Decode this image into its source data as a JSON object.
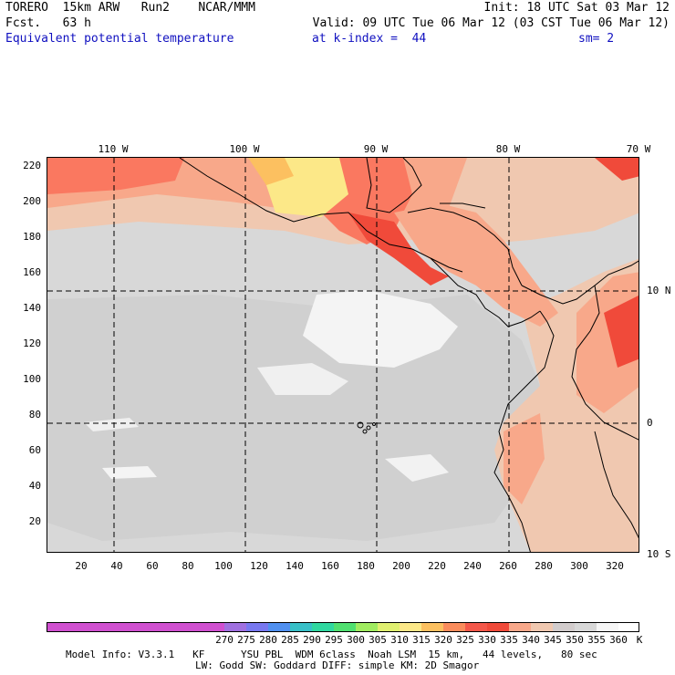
{
  "header": {
    "line1_left": "TORERO  15km ARW   Run2    NCAR/MMM",
    "line1_right": "Init: 18 UTC Sat 03 Mar 12",
    "line2_left": "Fcst.   63 h",
    "line2_right": "Valid: 09 UTC Tue 06 Mar 12 (03 CST Tue 06 Mar 12)",
    "field_name": "Equivalent potential temperature",
    "level_info": "at k-index =  44",
    "smoothing": "sm= 2"
  },
  "map": {
    "top_lon_labels": [
      "110 W",
      "100 W",
      "90 W",
      "80 W",
      "70 W"
    ],
    "right_lat_labels": [
      "10 N",
      "0",
      "10 S"
    ],
    "left_grid_labels": [
      "220",
      "200",
      "180",
      "160",
      "140",
      "120",
      "100",
      "80",
      "60",
      "40",
      "20"
    ],
    "bottom_grid_labels": [
      "20",
      "40",
      "60",
      "80",
      "100",
      "120",
      "140",
      "160",
      "180",
      "200",
      "220",
      "240",
      "260",
      "280",
      "300",
      "320"
    ],
    "field_colors": {
      "land_high": "#f04a3a",
      "very_warm": "#fa7860",
      "warm": "#f8a88a",
      "mild": "#f0c8b0",
      "cool": "#d2cccc",
      "colder": "#d8d8d8",
      "coldest": "#f6f6f6",
      "yellow": "#fce888",
      "orange": "#fcc060"
    },
    "coast_color": "#000000",
    "grid_line_style": "dashed"
  },
  "colorbar": {
    "colors": [
      "#d050d0",
      "#a070e0",
      "#7878f0",
      "#5090f0",
      "#38c0c8",
      "#30d8a0",
      "#50e070",
      "#a0ec60",
      "#e0f070",
      "#fce888",
      "#fcc060",
      "#fa8c5c",
      "#f4584a",
      "#f04a3a",
      "#f8a88a",
      "#f0c8b0",
      "#d2cccc",
      "#d8d8d8",
      "#f6f6f6"
    ],
    "labels": [
      "270",
      "275",
      "280",
      "285",
      "290",
      "295",
      "300",
      "305",
      "310",
      "315",
      "320",
      "325",
      "330",
      "335",
      "340",
      "345",
      "350",
      "355",
      "360"
    ],
    "unit": "K"
  },
  "footer": {
    "line1": "Model Info: V3.3.1   KF      YSU PBL  WDM 6class  Noah LSM  15 km,   44 levels,   80 sec",
    "line2": "LW: Godd SW: Goddard DIFF: simple KM: 2D Smagor"
  }
}
